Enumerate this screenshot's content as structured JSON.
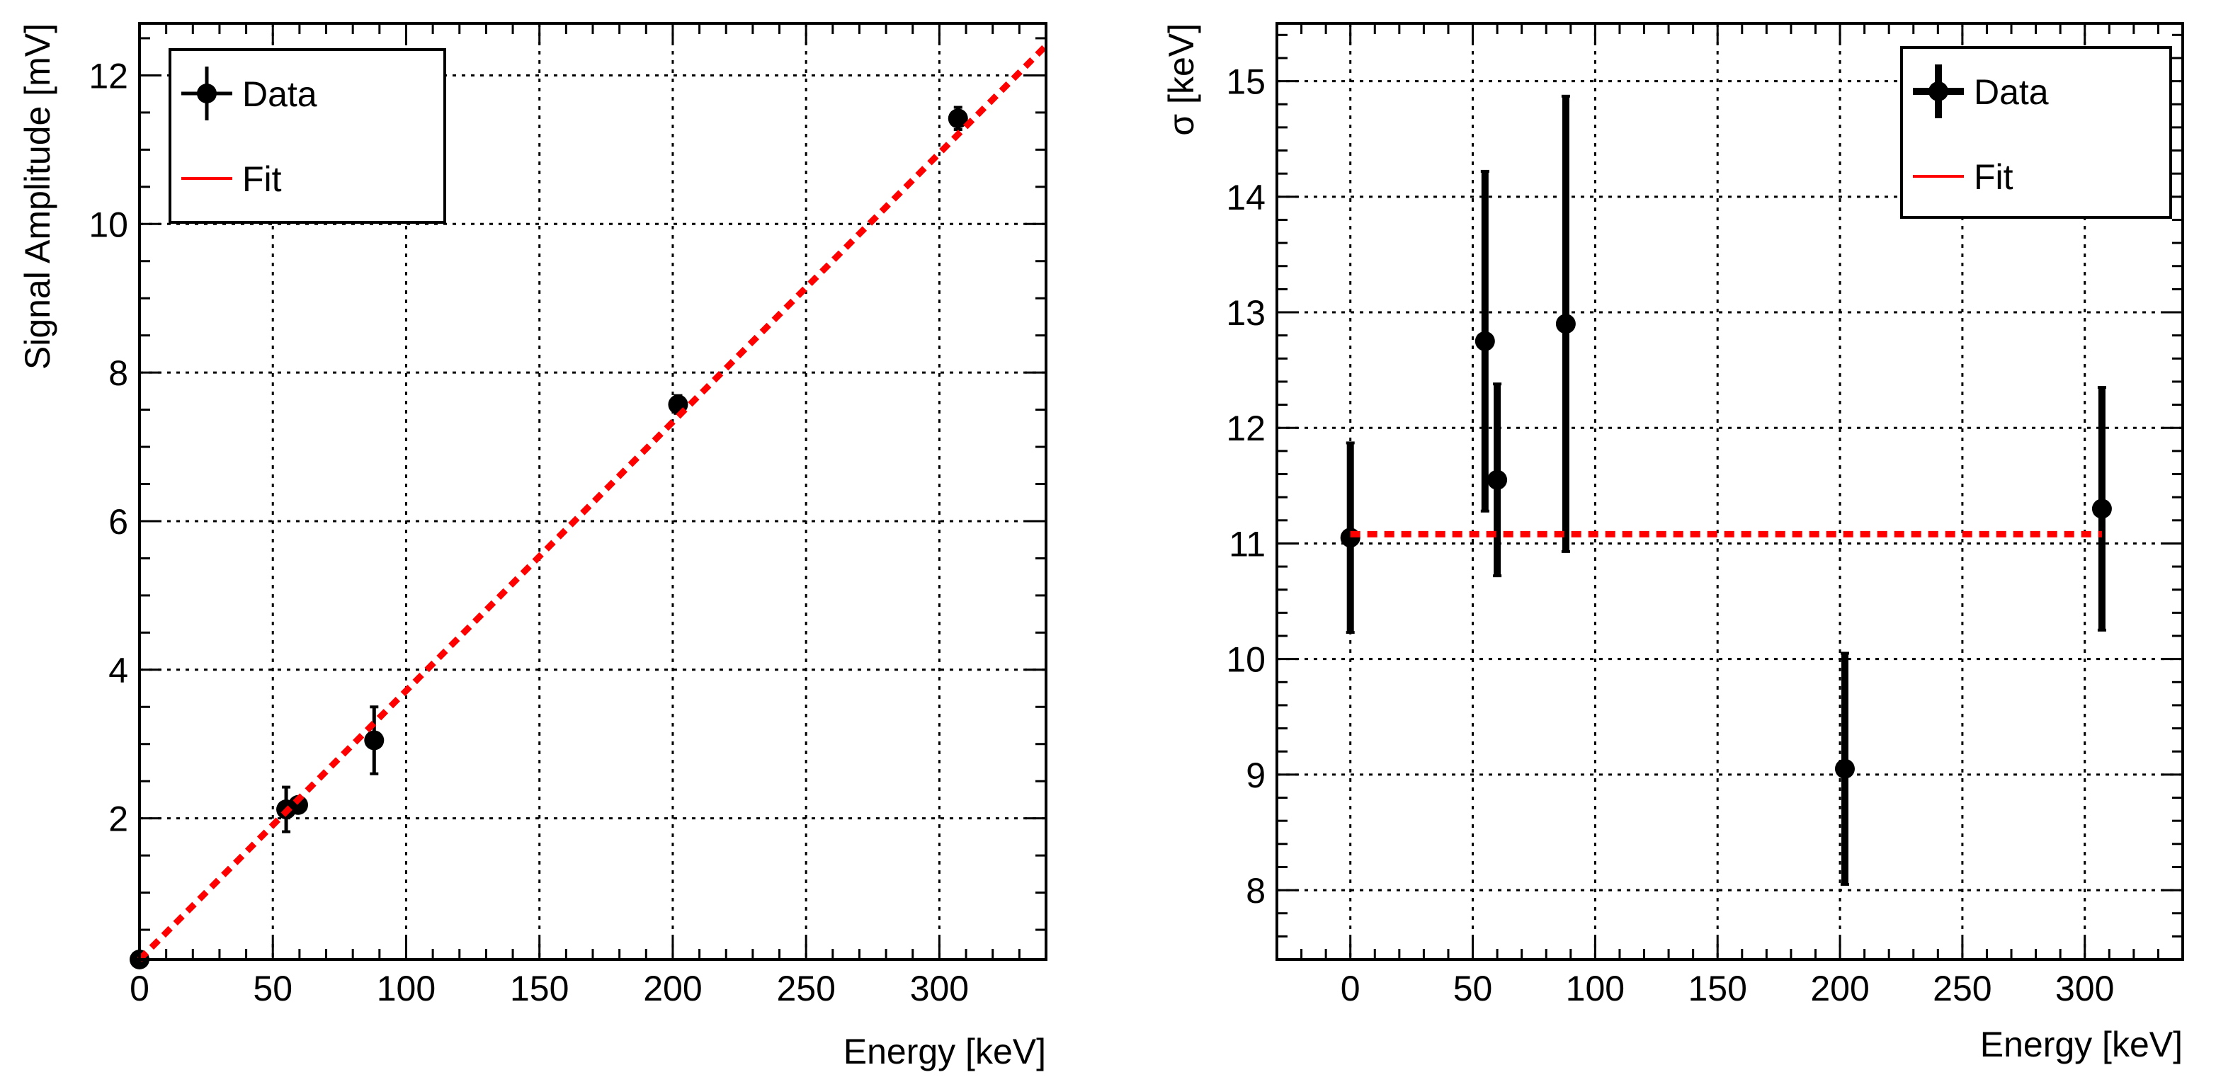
{
  "chart_data": [
    {
      "type": "scatter",
      "xlabel": "Energy [keV]",
      "ylabel": "Signal Amplitude [mV]",
      "xlim": [
        0,
        340
      ],
      "ylim": [
        0.1,
        12.7
      ],
      "x_ticks": [
        0,
        50,
        100,
        150,
        200,
        250,
        300
      ],
      "y_ticks": [
        2,
        4,
        6,
        8,
        10,
        12
      ],
      "grid": true,
      "legend_position": "top-left",
      "series": [
        {
          "name": "Data",
          "kind": "points-with-errors",
          "color": "#000000",
          "x": [
            0,
            55,
            59.5,
            88,
            202,
            307
          ],
          "y": [
            0.1,
            2.12,
            2.18,
            3.05,
            7.57,
            11.42
          ],
          "yerr": [
            0.0,
            0.3,
            0.1,
            0.45,
            0.12,
            0.15
          ]
        },
        {
          "name": "Fit",
          "kind": "line",
          "color": "#ff0000",
          "dashed": true,
          "x": [
            0,
            340
          ],
          "y": [
            0.1,
            12.4
          ]
        }
      ]
    },
    {
      "type": "scatter",
      "xlabel": "Energy [keV]",
      "ylabel": "σ [keV]",
      "xlim": [
        -30,
        340
      ],
      "ylim": [
        7.4,
        15.5
      ],
      "x_ticks": [
        0,
        50,
        100,
        150,
        200,
        250,
        300
      ],
      "y_ticks": [
        8,
        9,
        10,
        11,
        12,
        13,
        14,
        15
      ],
      "grid": true,
      "legend_position": "top-right",
      "series": [
        {
          "name": "Data",
          "kind": "points-with-errors",
          "color": "#000000",
          "x": [
            0,
            55,
            60,
            88,
            202,
            307
          ],
          "y": [
            11.05,
            12.75,
            11.55,
            12.9,
            9.05,
            11.3
          ],
          "yerr": [
            0.82,
            1.47,
            0.83,
            1.97,
            1.0,
            1.05
          ]
        },
        {
          "name": "Fit",
          "kind": "line",
          "color": "#ff0000",
          "dashed": true,
          "x": [
            0,
            307
          ],
          "y": [
            11.08,
            11.08
          ]
        }
      ]
    }
  ]
}
